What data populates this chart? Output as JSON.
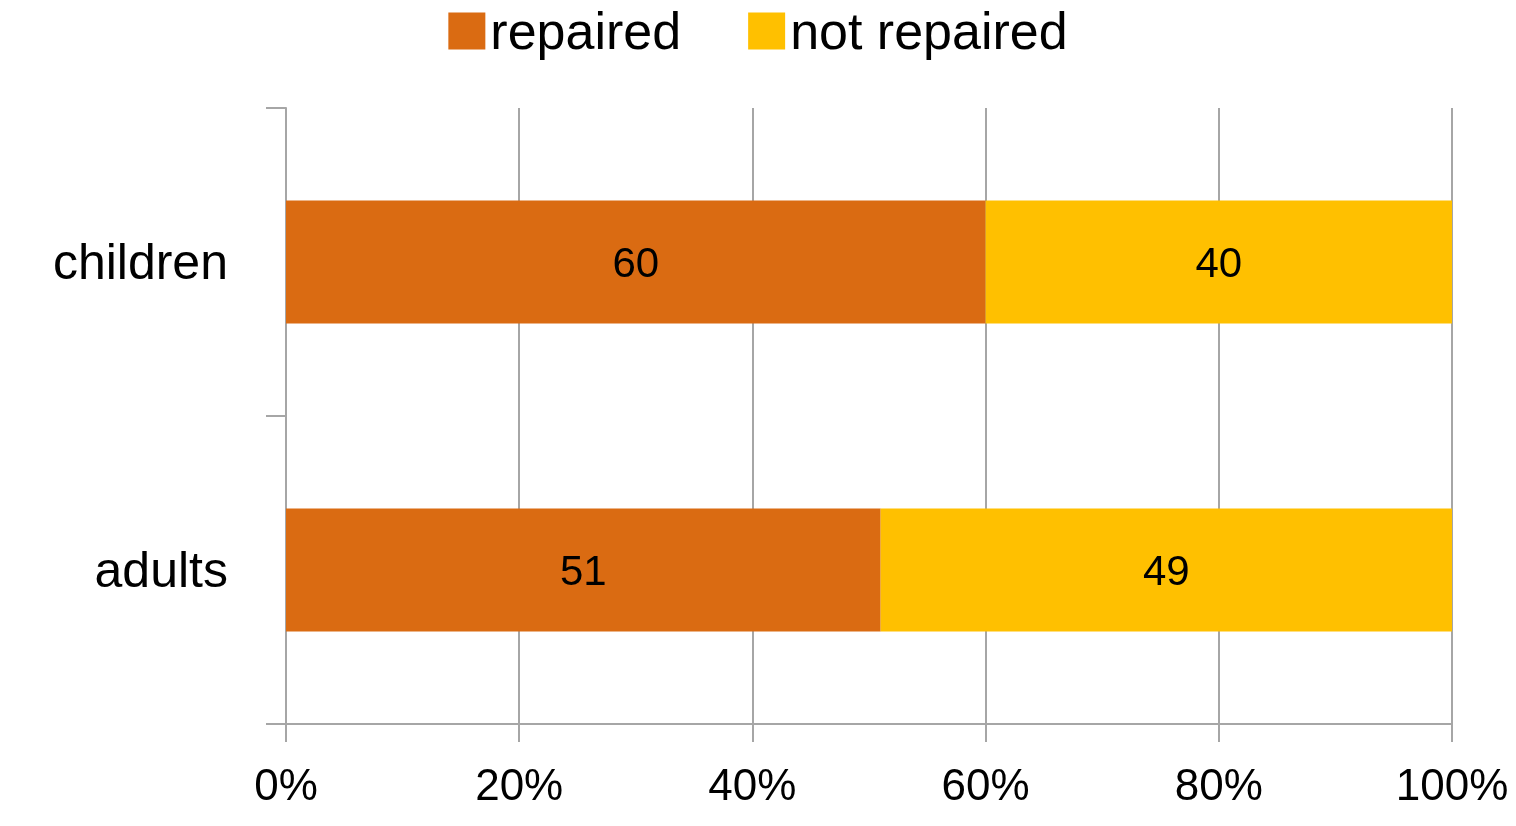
{
  "chart_data": {
    "type": "bar",
    "orientation": "horizontal",
    "stacked": true,
    "categories": [
      "children",
      "adults"
    ],
    "series": [
      {
        "name": "repaired",
        "color": "#da6b12",
        "values": [
          60,
          51
        ]
      },
      {
        "name": "not repaired",
        "color": "#ffc000",
        "values": [
          40,
          49
        ]
      }
    ],
    "xlim": [
      0,
      100
    ],
    "xticks": [
      {
        "value": 0,
        "label": "0%"
      },
      {
        "value": 20,
        "label": "20%"
      },
      {
        "value": 40,
        "label": "40%"
      },
      {
        "value": 60,
        "label": "60%"
      },
      {
        "value": 80,
        "label": "80%"
      },
      {
        "value": 100,
        "label": "100%"
      }
    ],
    "grid": "x",
    "legend": "top",
    "data_labels": true
  }
}
